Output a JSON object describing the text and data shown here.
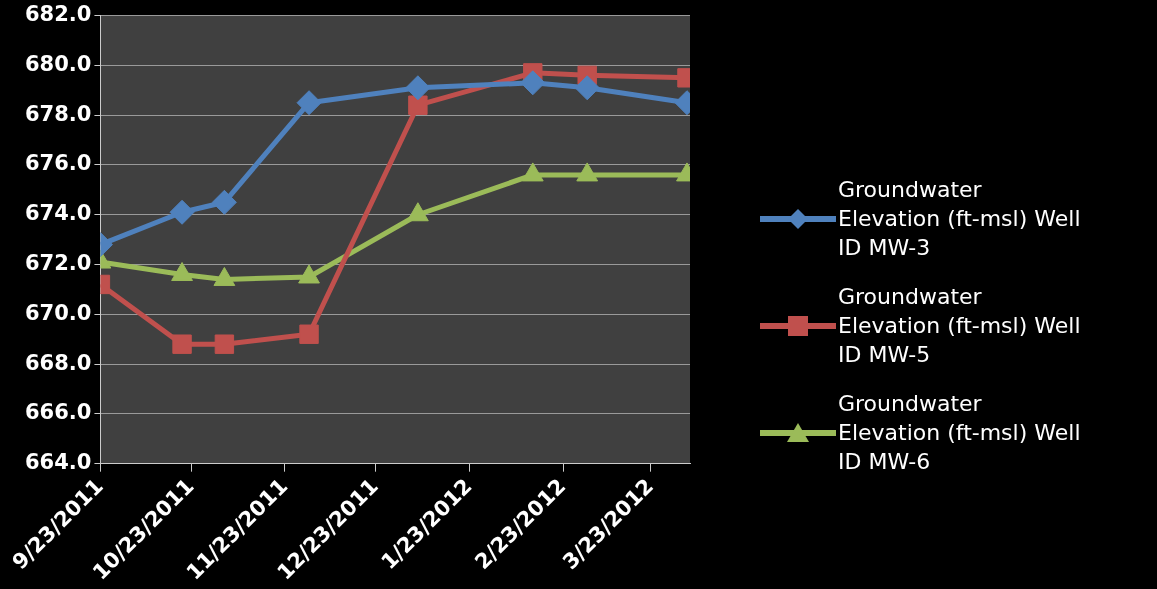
{
  "chart_data": {
    "type": "line",
    "x": [
      "2011-09-23",
      "2011-10-20",
      "2011-11-03",
      "2011-12-01",
      "2012-01-06",
      "2012-02-13",
      "2012-03-02",
      "2012-04-04"
    ],
    "series": [
      {
        "name": "Groundwater Elevation (ft-msl) Well ID MW-3",
        "color": "#4f81bd",
        "marker": "diamond",
        "values": [
          672.8,
          674.1,
          674.5,
          678.5,
          679.1,
          679.3,
          679.1,
          678.5
        ]
      },
      {
        "name": "Groundwater Elevation (ft-msl) Well ID MW-5",
        "color": "#c0504d",
        "marker": "square",
        "values": [
          671.2,
          668.8,
          668.8,
          669.2,
          678.4,
          679.7,
          679.6,
          679.5
        ]
      },
      {
        "name": "Groundwater Elevation (ft-msl) Well ID MW-6",
        "color": "#9bbb59",
        "marker": "triangle",
        "values": [
          672.1,
          671.6,
          671.4,
          671.5,
          674.0,
          675.6,
          675.6,
          675.6
        ]
      }
    ],
    "xlim": [
      "2011-09-23",
      "2012-04-05"
    ],
    "xticks": [
      {
        "value": "2011-09-23",
        "label": "9/23/2011"
      },
      {
        "value": "2011-10-23",
        "label": "10/23/2011"
      },
      {
        "value": "2011-11-23",
        "label": "11/23/2011"
      },
      {
        "value": "2011-12-23",
        "label": "12/23/2011"
      },
      {
        "value": "2012-01-23",
        "label": "1/23/2012"
      },
      {
        "value": "2012-02-23",
        "label": "2/23/2012"
      },
      {
        "value": "2012-03-23",
        "label": "3/23/2012"
      }
    ],
    "ylim": [
      664,
      682
    ],
    "yticks": [
      {
        "value": 664,
        "label": "664.0"
      },
      {
        "value": 666,
        "label": "666.0"
      },
      {
        "value": 668,
        "label": "668.0"
      },
      {
        "value": 670,
        "label": "670.0"
      },
      {
        "value": 672,
        "label": "672.0"
      },
      {
        "value": 674,
        "label": "674.0"
      },
      {
        "value": 676,
        "label": "676.0"
      },
      {
        "value": 678,
        "label": "678.0"
      },
      {
        "value": 680,
        "label": "680.0"
      },
      {
        "value": 682,
        "label": "682.0"
      }
    ],
    "grid": "y",
    "legend": "right"
  }
}
